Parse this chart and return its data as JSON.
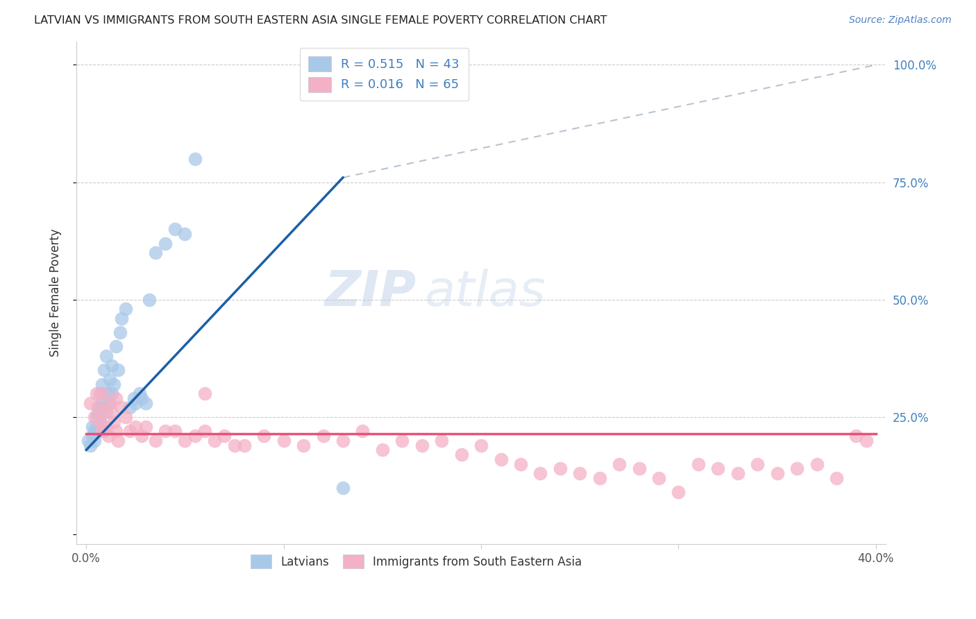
{
  "title": "LATVIAN VS IMMIGRANTS FROM SOUTH EASTERN ASIA SINGLE FEMALE POVERTY CORRELATION CHART",
  "source": "Source: ZipAtlas.com",
  "ylabel": "Single Female Poverty",
  "latvian_color": "#a8c8e8",
  "latvian_edge_color": "#a8c8e8",
  "immigrant_color": "#f4b0c4",
  "immigrant_edge_color": "#f4b0c4",
  "latvian_line_color": "#1a5fa8",
  "immigrant_line_color": "#e8507a",
  "diagonal_color": "#b8c4d0",
  "right_axis_color": "#4080c0",
  "legend_R1": "R = 0.515",
  "legend_N1": "N = 43",
  "legend_R2": "R = 0.016",
  "legend_N2": "N = 65",
  "latvian_label": "Latvians",
  "immigrant_label": "Immigrants from South Eastern Asia",
  "watermark_zip": "ZIP",
  "watermark_atlas": "atlas",
  "xlim": [
    0.0,
    0.4
  ],
  "ylim": [
    0.0,
    1.0
  ],
  "latvian_x": [
    0.001,
    0.002,
    0.003,
    0.003,
    0.004,
    0.004,
    0.005,
    0.005,
    0.006,
    0.006,
    0.007,
    0.007,
    0.007,
    0.008,
    0.008,
    0.009,
    0.009,
    0.01,
    0.01,
    0.011,
    0.012,
    0.012,
    0.013,
    0.013,
    0.014,
    0.015,
    0.016,
    0.017,
    0.018,
    0.02,
    0.022,
    0.024,
    0.025,
    0.027,
    0.028,
    0.03,
    0.032,
    0.035,
    0.04,
    0.045,
    0.05,
    0.055,
    0.13
  ],
  "latvian_y": [
    0.2,
    0.19,
    0.21,
    0.23,
    0.2,
    0.22,
    0.23,
    0.25,
    0.22,
    0.26,
    0.24,
    0.27,
    0.3,
    0.28,
    0.32,
    0.22,
    0.35,
    0.26,
    0.38,
    0.3,
    0.28,
    0.33,
    0.3,
    0.36,
    0.32,
    0.4,
    0.35,
    0.43,
    0.46,
    0.48,
    0.27,
    0.29,
    0.28,
    0.3,
    0.29,
    0.28,
    0.5,
    0.6,
    0.62,
    0.65,
    0.64,
    0.8,
    0.1
  ],
  "immigrant_x": [
    0.002,
    0.004,
    0.005,
    0.006,
    0.007,
    0.008,
    0.009,
    0.01,
    0.011,
    0.012,
    0.013,
    0.014,
    0.015,
    0.016,
    0.018,
    0.02,
    0.022,
    0.025,
    0.028,
    0.03,
    0.035,
    0.04,
    0.045,
    0.05,
    0.055,
    0.06,
    0.065,
    0.07,
    0.075,
    0.08,
    0.09,
    0.1,
    0.11,
    0.12,
    0.13,
    0.14,
    0.15,
    0.16,
    0.17,
    0.18,
    0.19,
    0.2,
    0.21,
    0.22,
    0.23,
    0.24,
    0.25,
    0.26,
    0.27,
    0.28,
    0.29,
    0.3,
    0.31,
    0.32,
    0.33,
    0.34,
    0.35,
    0.36,
    0.37,
    0.38,
    0.39,
    0.395,
    0.008,
    0.015,
    0.06
  ],
  "immigrant_y": [
    0.28,
    0.25,
    0.3,
    0.27,
    0.24,
    0.22,
    0.26,
    0.23,
    0.21,
    0.28,
    0.26,
    0.24,
    0.22,
    0.2,
    0.27,
    0.25,
    0.22,
    0.23,
    0.21,
    0.23,
    0.2,
    0.22,
    0.22,
    0.2,
    0.21,
    0.22,
    0.2,
    0.21,
    0.19,
    0.19,
    0.21,
    0.2,
    0.19,
    0.21,
    0.2,
    0.22,
    0.18,
    0.2,
    0.19,
    0.2,
    0.17,
    0.19,
    0.16,
    0.15,
    0.13,
    0.14,
    0.13,
    0.12,
    0.15,
    0.14,
    0.12,
    0.09,
    0.15,
    0.14,
    0.13,
    0.15,
    0.13,
    0.14,
    0.15,
    0.12,
    0.21,
    0.2,
    0.3,
    0.29,
    0.3
  ],
  "blue_line_x": [
    0.0,
    0.13
  ],
  "blue_line_y": [
    0.18,
    0.76
  ],
  "pink_line_x": [
    0.0,
    0.4
  ],
  "pink_line_y": [
    0.215,
    0.215
  ],
  "diag_line_x": [
    0.13,
    0.4
  ],
  "diag_line_y": [
    0.76,
    1.0
  ]
}
